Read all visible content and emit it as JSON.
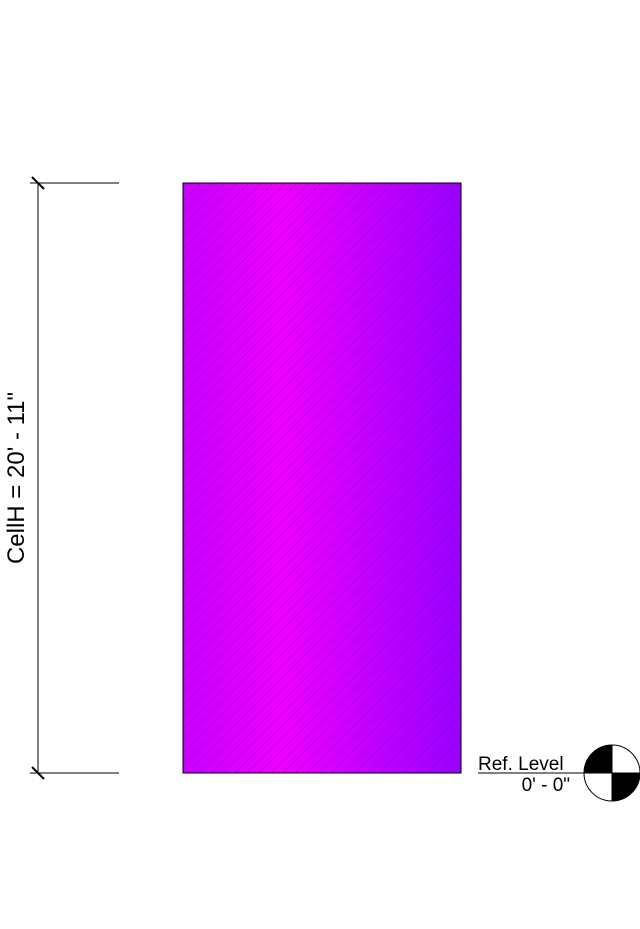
{
  "dimension": {
    "label": "CellH = 20' - 11\""
  },
  "level": {
    "name": "Ref. Level",
    "elevation": "0' - 0\""
  },
  "colors": {
    "fill_left": "#c800ff",
    "fill_mid": "#ee00ff",
    "fill_right": "#9900ff",
    "hatch": "#7a00b8",
    "line": "#000000",
    "background": "#ffffff"
  }
}
